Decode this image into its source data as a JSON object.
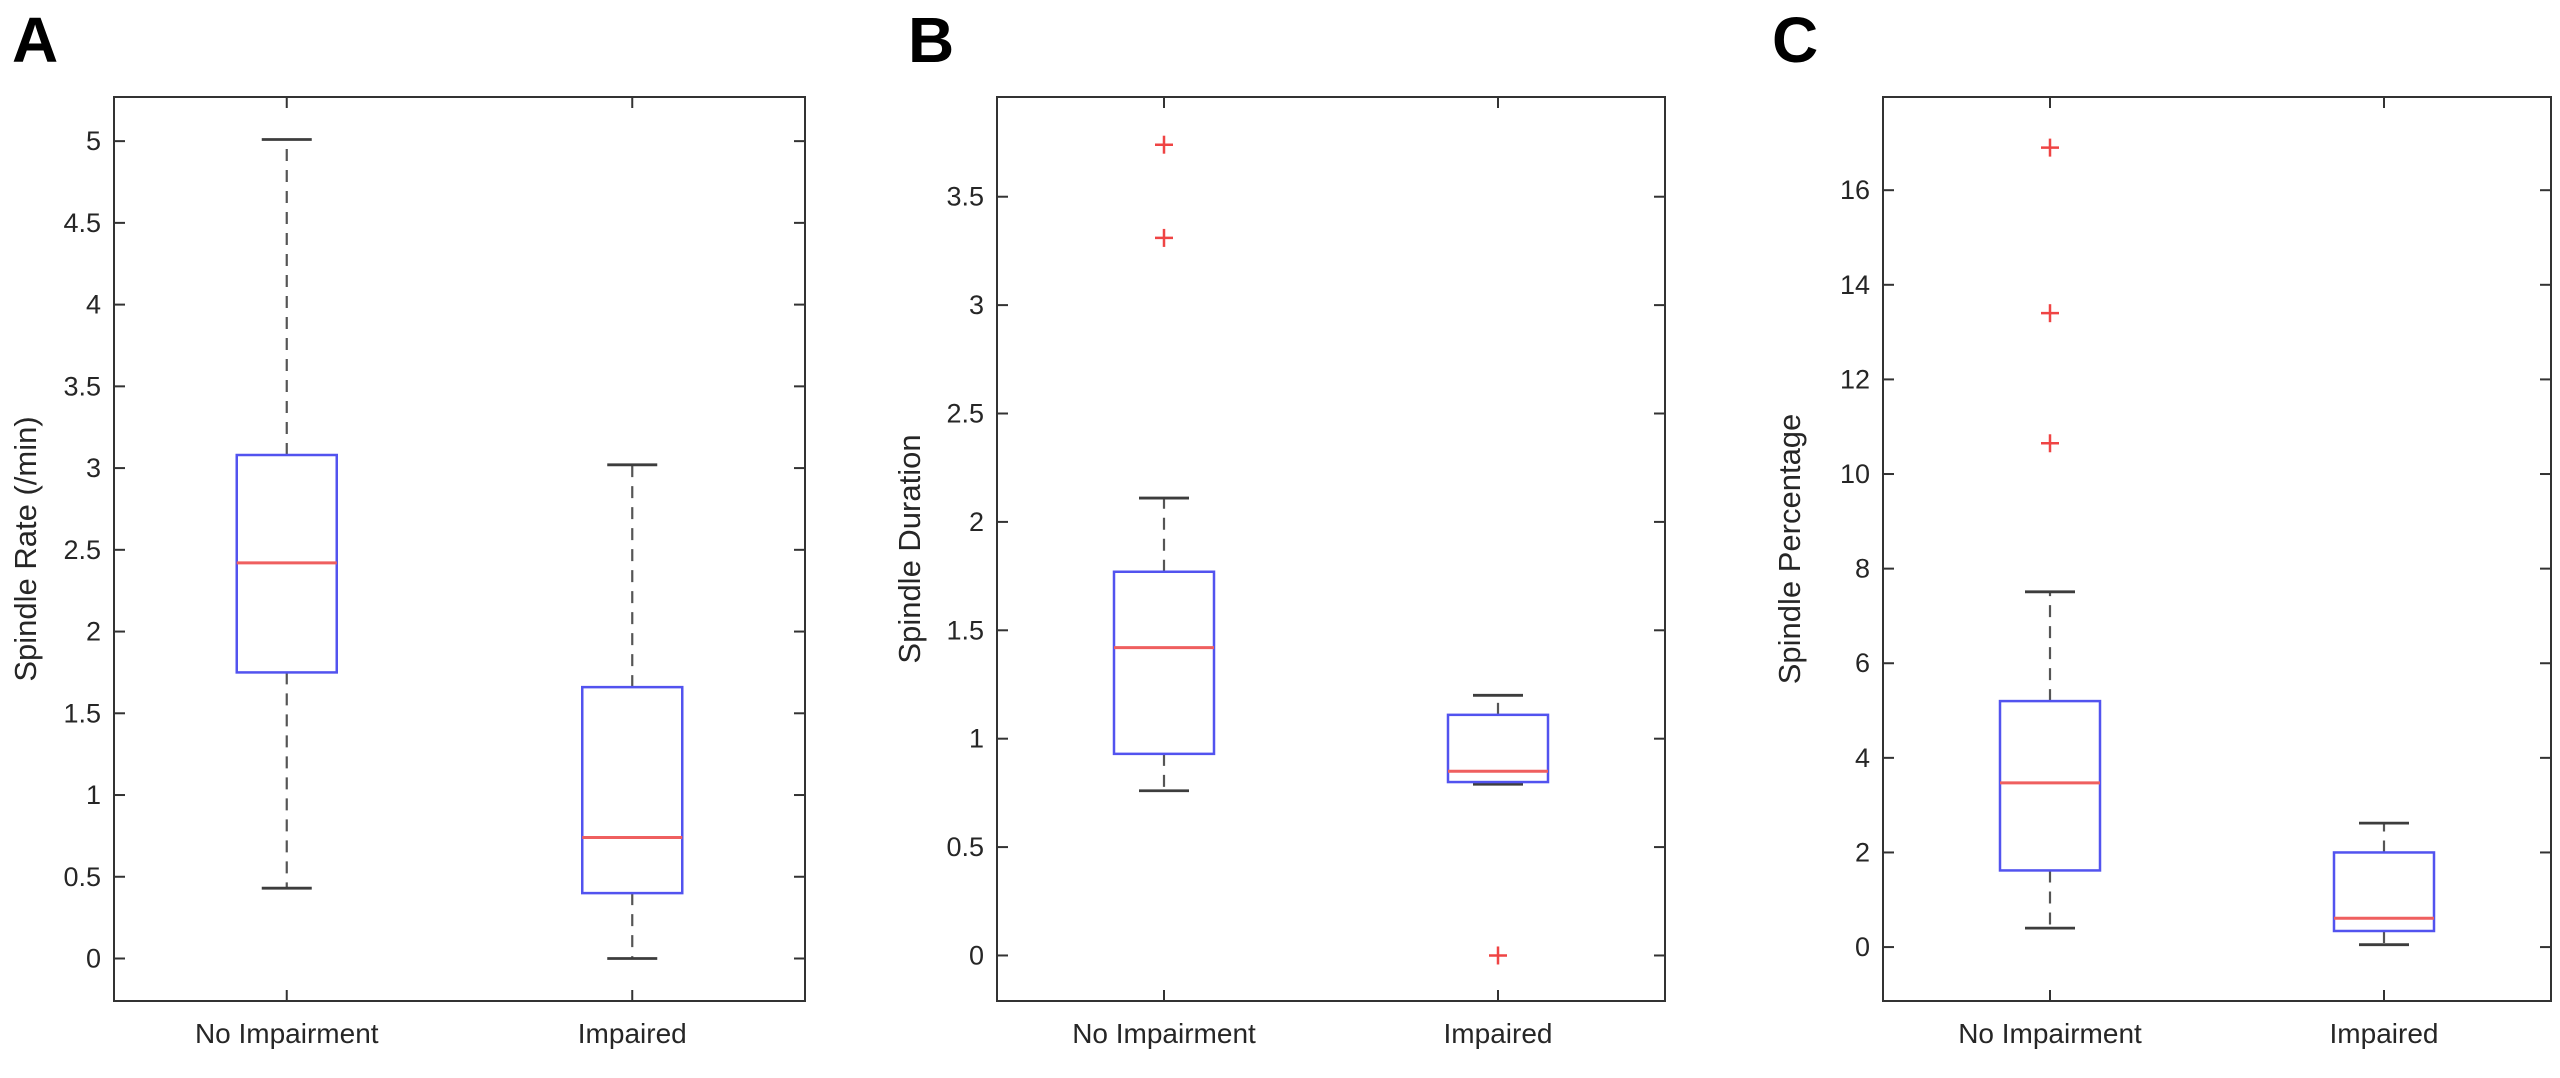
{
  "colors": {
    "background": "#ffffff",
    "axis": "#333333",
    "tick_text": "#262626",
    "box_edge": "#5253ef",
    "median": "#ef5f5f",
    "whisker": "#555555",
    "cap": "#3d3d3d",
    "outlier": "#ef4444",
    "panel_letter": "#000000"
  },
  "chart_data": [
    {
      "type": "boxplot",
      "panel_letter": "A",
      "ylabel": "Spindle Rate (/min)",
      "xlabel": "",
      "categories": [
        "No Impairment",
        "Impaired"
      ],
      "ylim": [
        -0.26,
        5.27
      ],
      "yticks": [
        0,
        0.5,
        1,
        1.5,
        2,
        2.5,
        3,
        3.5,
        4,
        4.5,
        5
      ],
      "ytick_labels": [
        "0",
        "0.5",
        "1",
        "1.5",
        "2",
        "2.5",
        "3",
        "3.5",
        "4",
        "4.5",
        "5"
      ],
      "grid": false,
      "legend": "none",
      "series": [
        {
          "name": "No Impairment",
          "whisker_low": 0.43,
          "q1": 1.75,
          "median": 2.42,
          "q3": 3.08,
          "whisker_high": 5.01,
          "outliers": []
        },
        {
          "name": "Impaired",
          "whisker_low": 0.0,
          "q1": 0.4,
          "median": 0.74,
          "q3": 1.66,
          "whisker_high": 3.02,
          "outliers": []
        }
      ]
    },
    {
      "type": "boxplot",
      "panel_letter": "B",
      "ylabel": "Spindle Duration",
      "xlabel": "",
      "categories": [
        "No Impairment",
        "Impaired"
      ],
      "ylim": [
        -0.21,
        3.96
      ],
      "yticks": [
        0,
        0.5,
        1,
        1.5,
        2,
        2.5,
        3,
        3.5
      ],
      "ytick_labels": [
        "0",
        "0.5",
        "1",
        "1.5",
        "2",
        "2.5",
        "3",
        "3.5"
      ],
      "grid": false,
      "legend": "none",
      "series": [
        {
          "name": "No Impairment",
          "whisker_low": 0.76,
          "q1": 0.93,
          "median": 1.42,
          "q3": 1.77,
          "whisker_high": 2.11,
          "outliers": [
            3.31,
            3.74
          ]
        },
        {
          "name": "Impaired",
          "whisker_low": 0.79,
          "q1": 0.8,
          "median": 0.85,
          "q3": 1.11,
          "whisker_high": 1.2,
          "outliers": [
            0.0
          ]
        }
      ]
    },
    {
      "type": "boxplot",
      "panel_letter": "C",
      "ylabel": "Spindle Percentage",
      "xlabel": "",
      "categories": [
        "No Impairment",
        "Impaired"
      ],
      "ylim": [
        -1.14,
        17.97
      ],
      "yticks": [
        0,
        2,
        4,
        6,
        8,
        10,
        12,
        14,
        16
      ],
      "ytick_labels": [
        "0",
        "2",
        "4",
        "6",
        "8",
        "10",
        "12",
        "14",
        "16"
      ],
      "grid": false,
      "legend": "none",
      "series": [
        {
          "name": "No Impairment",
          "whisker_low": 0.4,
          "q1": 1.62,
          "median": 3.47,
          "q3": 5.2,
          "whisker_high": 7.51,
          "outliers": [
            10.65,
            13.4,
            16.9
          ]
        },
        {
          "name": "Impaired",
          "whisker_low": 0.05,
          "q1": 0.34,
          "median": 0.61,
          "q3": 2.0,
          "whisker_high": 2.62,
          "outliers": []
        }
      ]
    }
  ]
}
